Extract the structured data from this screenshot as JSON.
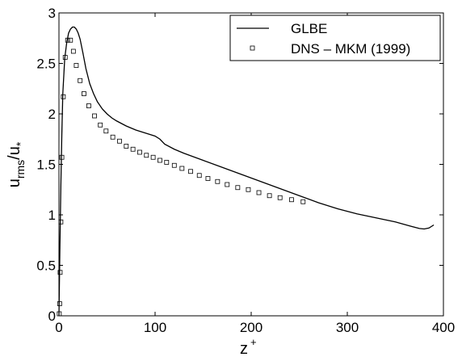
{
  "chart_data": {
    "type": "line",
    "xlabel": "z",
    "xlabel_sup": "+",
    "ylabel_main": "u",
    "ylabel_sub": "rms",
    "ylabel_mid": "/u",
    "ylabel_sub2": "*",
    "xlim": [
      0,
      400
    ],
    "ylim": [
      0,
      3
    ],
    "xticks": [
      0,
      100,
      200,
      300,
      400
    ],
    "xtick_labels": [
      "0",
      "100",
      "200",
      "300",
      "400"
    ],
    "yticks": [
      0,
      0.5,
      1,
      1.5,
      2,
      2.5,
      3
    ],
    "ytick_labels": [
      "0",
      "0.5",
      "1",
      "1.5",
      "2",
      "2.5",
      "3"
    ],
    "grid": false,
    "legend_position": "top-right",
    "series": [
      {
        "name": "GLBE",
        "style": "line",
        "color": "#000000",
        "x": [
          0,
          1,
          2,
          3,
          4,
          6,
          8,
          10,
          12,
          14,
          16,
          18,
          20,
          22,
          25,
          28,
          32,
          36,
          40,
          45,
          50,
          55,
          60,
          70,
          80,
          90,
          100,
          105,
          110,
          120,
          130,
          150,
          170,
          190,
          210,
          230,
          250,
          270,
          290,
          310,
          330,
          350,
          365,
          375,
          380,
          385,
          390
        ],
        "y": [
          0,
          0.7,
          1.3,
          1.8,
          2.2,
          2.55,
          2.7,
          2.8,
          2.84,
          2.86,
          2.86,
          2.84,
          2.8,
          2.74,
          2.6,
          2.45,
          2.3,
          2.2,
          2.12,
          2.05,
          2.0,
          1.96,
          1.93,
          1.88,
          1.84,
          1.81,
          1.78,
          1.75,
          1.7,
          1.65,
          1.61,
          1.54,
          1.47,
          1.4,
          1.33,
          1.26,
          1.19,
          1.12,
          1.06,
          1.01,
          0.97,
          0.93,
          0.89,
          0.865,
          0.86,
          0.87,
          0.9
        ]
      },
      {
        "name": "DNS – MKM (1999)",
        "style": "markers",
        "color": "#000000",
        "x": [
          0.3,
          0.7,
          1.2,
          2,
          3,
          4.5,
          6.5,
          9,
          12,
          15,
          18,
          22,
          26,
          31,
          37,
          43,
          49,
          56,
          63,
          70,
          77,
          84,
          91,
          98,
          105,
          112,
          120,
          128,
          137,
          146,
          155,
          165,
          175,
          186,
          197,
          208,
          219,
          230,
          242,
          254
        ],
        "y": [
          0.02,
          0.12,
          0.43,
          0.93,
          1.57,
          2.17,
          2.56,
          2.73,
          2.73,
          2.62,
          2.48,
          2.33,
          2.2,
          2.08,
          1.98,
          1.89,
          1.83,
          1.77,
          1.73,
          1.68,
          1.65,
          1.62,
          1.59,
          1.57,
          1.54,
          1.52,
          1.49,
          1.46,
          1.43,
          1.39,
          1.36,
          1.33,
          1.3,
          1.27,
          1.25,
          1.22,
          1.19,
          1.17,
          1.15,
          1.13
        ]
      }
    ]
  }
}
